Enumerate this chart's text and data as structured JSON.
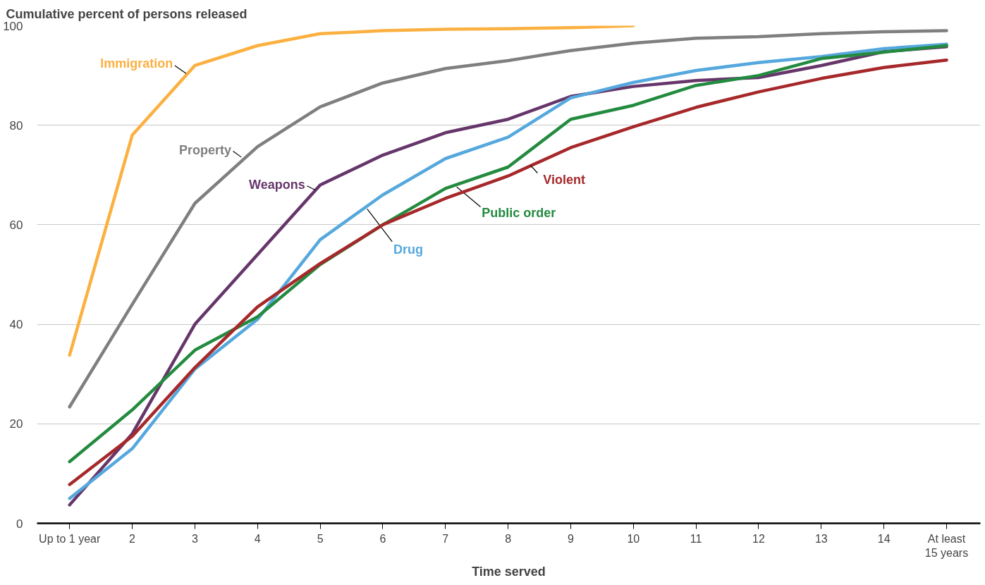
{
  "chart_data": {
    "type": "line",
    "xlabel": "Time served",
    "ylabel": "Cumulative percent of persons released",
    "categories": [
      "Up to 1 year",
      "2",
      "3",
      "4",
      "5",
      "6",
      "7",
      "8",
      "9",
      "10",
      "11",
      "12",
      "13",
      "14",
      "At least\n15 years"
    ],
    "series": [
      {
        "name": "Immigration",
        "color": "#fbb040",
        "values": [
          33.8,
          78,
          92,
          96,
          98.4,
          99,
          99.3,
          99.4,
          99.6,
          100,
          null,
          null,
          null,
          null,
          null
        ]
      },
      {
        "name": "Property",
        "color": "#7f7f7f",
        "values": [
          23.4,
          44,
          64.3,
          75.7,
          83.7,
          88.5,
          91.4,
          93,
          95,
          96.5,
          97.5,
          97.8,
          98.4,
          98.8,
          99
        ]
      },
      {
        "name": "Weapons",
        "color": "#66366b",
        "values": [
          3.7,
          18,
          40,
          54,
          68,
          74,
          78.5,
          81.2,
          85.8,
          87.8,
          89,
          89.6,
          92,
          94.8,
          95.8
        ]
      },
      {
        "name": "Drug",
        "color": "#55a8dd",
        "values": [
          5,
          15,
          31,
          41,
          57,
          66,
          73.3,
          77.6,
          85.5,
          88.6,
          91,
          92.6,
          93.8,
          95.4,
          96.3
        ]
      },
      {
        "name": "Public order",
        "color": "#238b3f",
        "values": [
          12.4,
          22.8,
          34.8,
          41.5,
          52,
          60,
          67.3,
          71.6,
          81.2,
          84,
          88,
          90,
          93.4,
          94.7,
          96
        ]
      },
      {
        "name": "Violent",
        "color": "#a6282a",
        "values": [
          7.8,
          17.5,
          31.3,
          43.5,
          52.2,
          60,
          65.3,
          69.8,
          75.5,
          79.7,
          83.6,
          86.7,
          89.4,
          91.6,
          93.1
        ]
      }
    ],
    "ylim": [
      0,
      100
    ],
    "yticks": [
      0,
      20,
      40,
      60,
      80,
      100
    ],
    "grid": "y",
    "marker": "none",
    "line_style": "solid"
  }
}
